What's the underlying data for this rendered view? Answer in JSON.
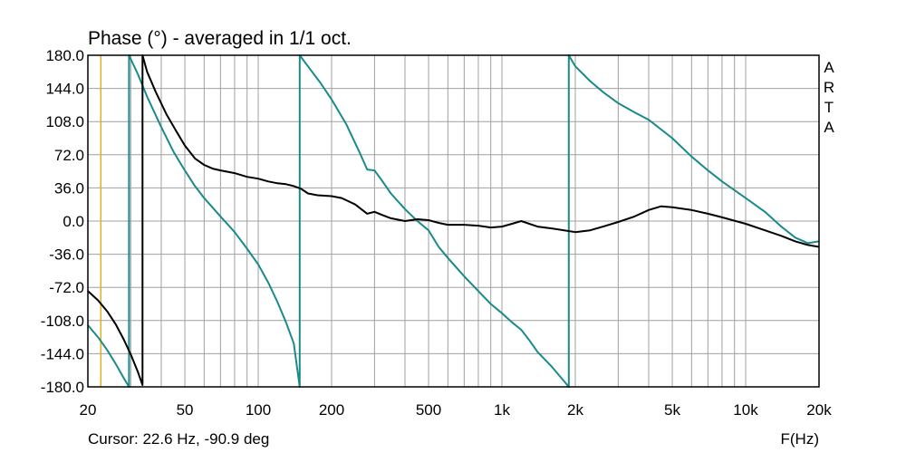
{
  "chart_data": {
    "type": "line",
    "title": "Phase (°) - averaged in 1/1 oct.",
    "xlabel": "F(Hz)",
    "ylabel": "",
    "xscale": "log",
    "xlim": [
      20,
      20000
    ],
    "ylim": [
      -180,
      180
    ],
    "grid": true,
    "side_label": [
      "A",
      "R",
      "T",
      "A"
    ],
    "cursor_text": "Cursor: 22.6 Hz, -90.9 deg",
    "cursor_hz": 22.6,
    "colors": {
      "series_1": "#000000",
      "series_2": "#1a8a8a",
      "cursor": "#e0b020",
      "grid": "#a0a0a0"
    },
    "y_ticks": [
      "180.0",
      "144.0",
      "108.0",
      "72.0",
      "36.0",
      "0.0",
      "-36.0",
      "-72.0",
      "-108.0",
      "-144.0",
      "-180.0"
    ],
    "y_tick_values": [
      180,
      144,
      108,
      72,
      36,
      0,
      -36,
      -72,
      -108,
      -144,
      -180
    ],
    "x_ticks": [
      {
        "label": "20",
        "value": 20
      },
      {
        "label": "50",
        "value": 50
      },
      {
        "label": "100",
        "value": 100
      },
      {
        "label": "200",
        "value": 200
      },
      {
        "label": "500",
        "value": 500
      },
      {
        "label": "1k",
        "value": 1000
      },
      {
        "label": "2k",
        "value": 2000
      },
      {
        "label": "5k",
        "value": 5000
      },
      {
        "label": "10k",
        "value": 10000
      },
      {
        "label": "20k",
        "value": 20000
      }
    ],
    "series": [
      {
        "x": [
          20,
          22,
          24,
          26,
          28,
          30,
          32,
          33.5,
          33.5,
          35,
          38,
          42,
          46,
          50,
          55,
          60,
          65,
          70,
          80,
          90,
          100,
          110,
          120,
          130,
          140,
          150,
          160,
          175,
          200,
          220,
          250,
          280,
          300,
          320,
          350,
          400,
          450,
          500,
          550,
          600,
          700,
          800,
          900,
          1000,
          1100,
          1200,
          1400,
          1600,
          1800,
          2000,
          2300,
          2600,
          3000,
          3500,
          4000,
          4500,
          5000,
          6000,
          7000,
          8000,
          10000,
          12000,
          14000,
          16000,
          18000,
          20000
        ],
        "y": [
          -76,
          -86,
          -98,
          -112,
          -128,
          -145,
          -163,
          -178,
          180,
          162,
          140,
          116,
          98,
          82,
          68,
          61,
          57,
          55,
          52,
          48,
          46,
          43,
          41,
          40,
          38,
          35,
          30,
          28,
          27,
          25,
          18,
          8,
          10,
          7,
          3,
          0,
          2,
          1,
          -2,
          -4,
          -4,
          -5,
          -7,
          -6,
          -3,
          0,
          -6,
          -8,
          -10,
          -12,
          -10,
          -6,
          -1,
          5,
          12,
          16,
          15,
          12,
          8,
          4,
          -3,
          -10,
          -16,
          -22,
          -26,
          -28
        ]
      },
      {
        "x": [
          20,
          22,
          24,
          26,
          28,
          29.5,
          29.5,
          32,
          35,
          40,
          45,
          50,
          55,
          60,
          70,
          80,
          90,
          100,
          110,
          120,
          130,
          140,
          148,
          148,
          160,
          180,
          200,
          230,
          260,
          280,
          300,
          320,
          350,
          400,
          450,
          500,
          550,
          600,
          700,
          800,
          900,
          1000,
          1100,
          1200,
          1300,
          1400,
          1600,
          1800,
          1880,
          1880,
          2000,
          2300,
          2600,
          3000,
          3500,
          4000,
          5000,
          6000,
          7000,
          8000,
          10000,
          12000,
          14000,
          16000,
          18000,
          20000
        ],
        "y": [
          -113,
          -126,
          -140,
          -155,
          -170,
          -180,
          180,
          160,
          135,
          102,
          75,
          55,
          38,
          25,
          5,
          -12,
          -30,
          -47,
          -67,
          -88,
          -110,
          -133,
          -180,
          180,
          168,
          150,
          132,
          105,
          75,
          56,
          55,
          45,
          30,
          13,
          0,
          -10,
          -28,
          -40,
          -60,
          -76,
          -90,
          -100,
          -110,
          -118,
          -130,
          -142,
          -158,
          -174,
          -180,
          180,
          168,
          152,
          140,
          128,
          118,
          110,
          90,
          70,
          55,
          43,
          25,
          10,
          -6,
          -18,
          -24,
          -22
        ]
      }
    ]
  }
}
